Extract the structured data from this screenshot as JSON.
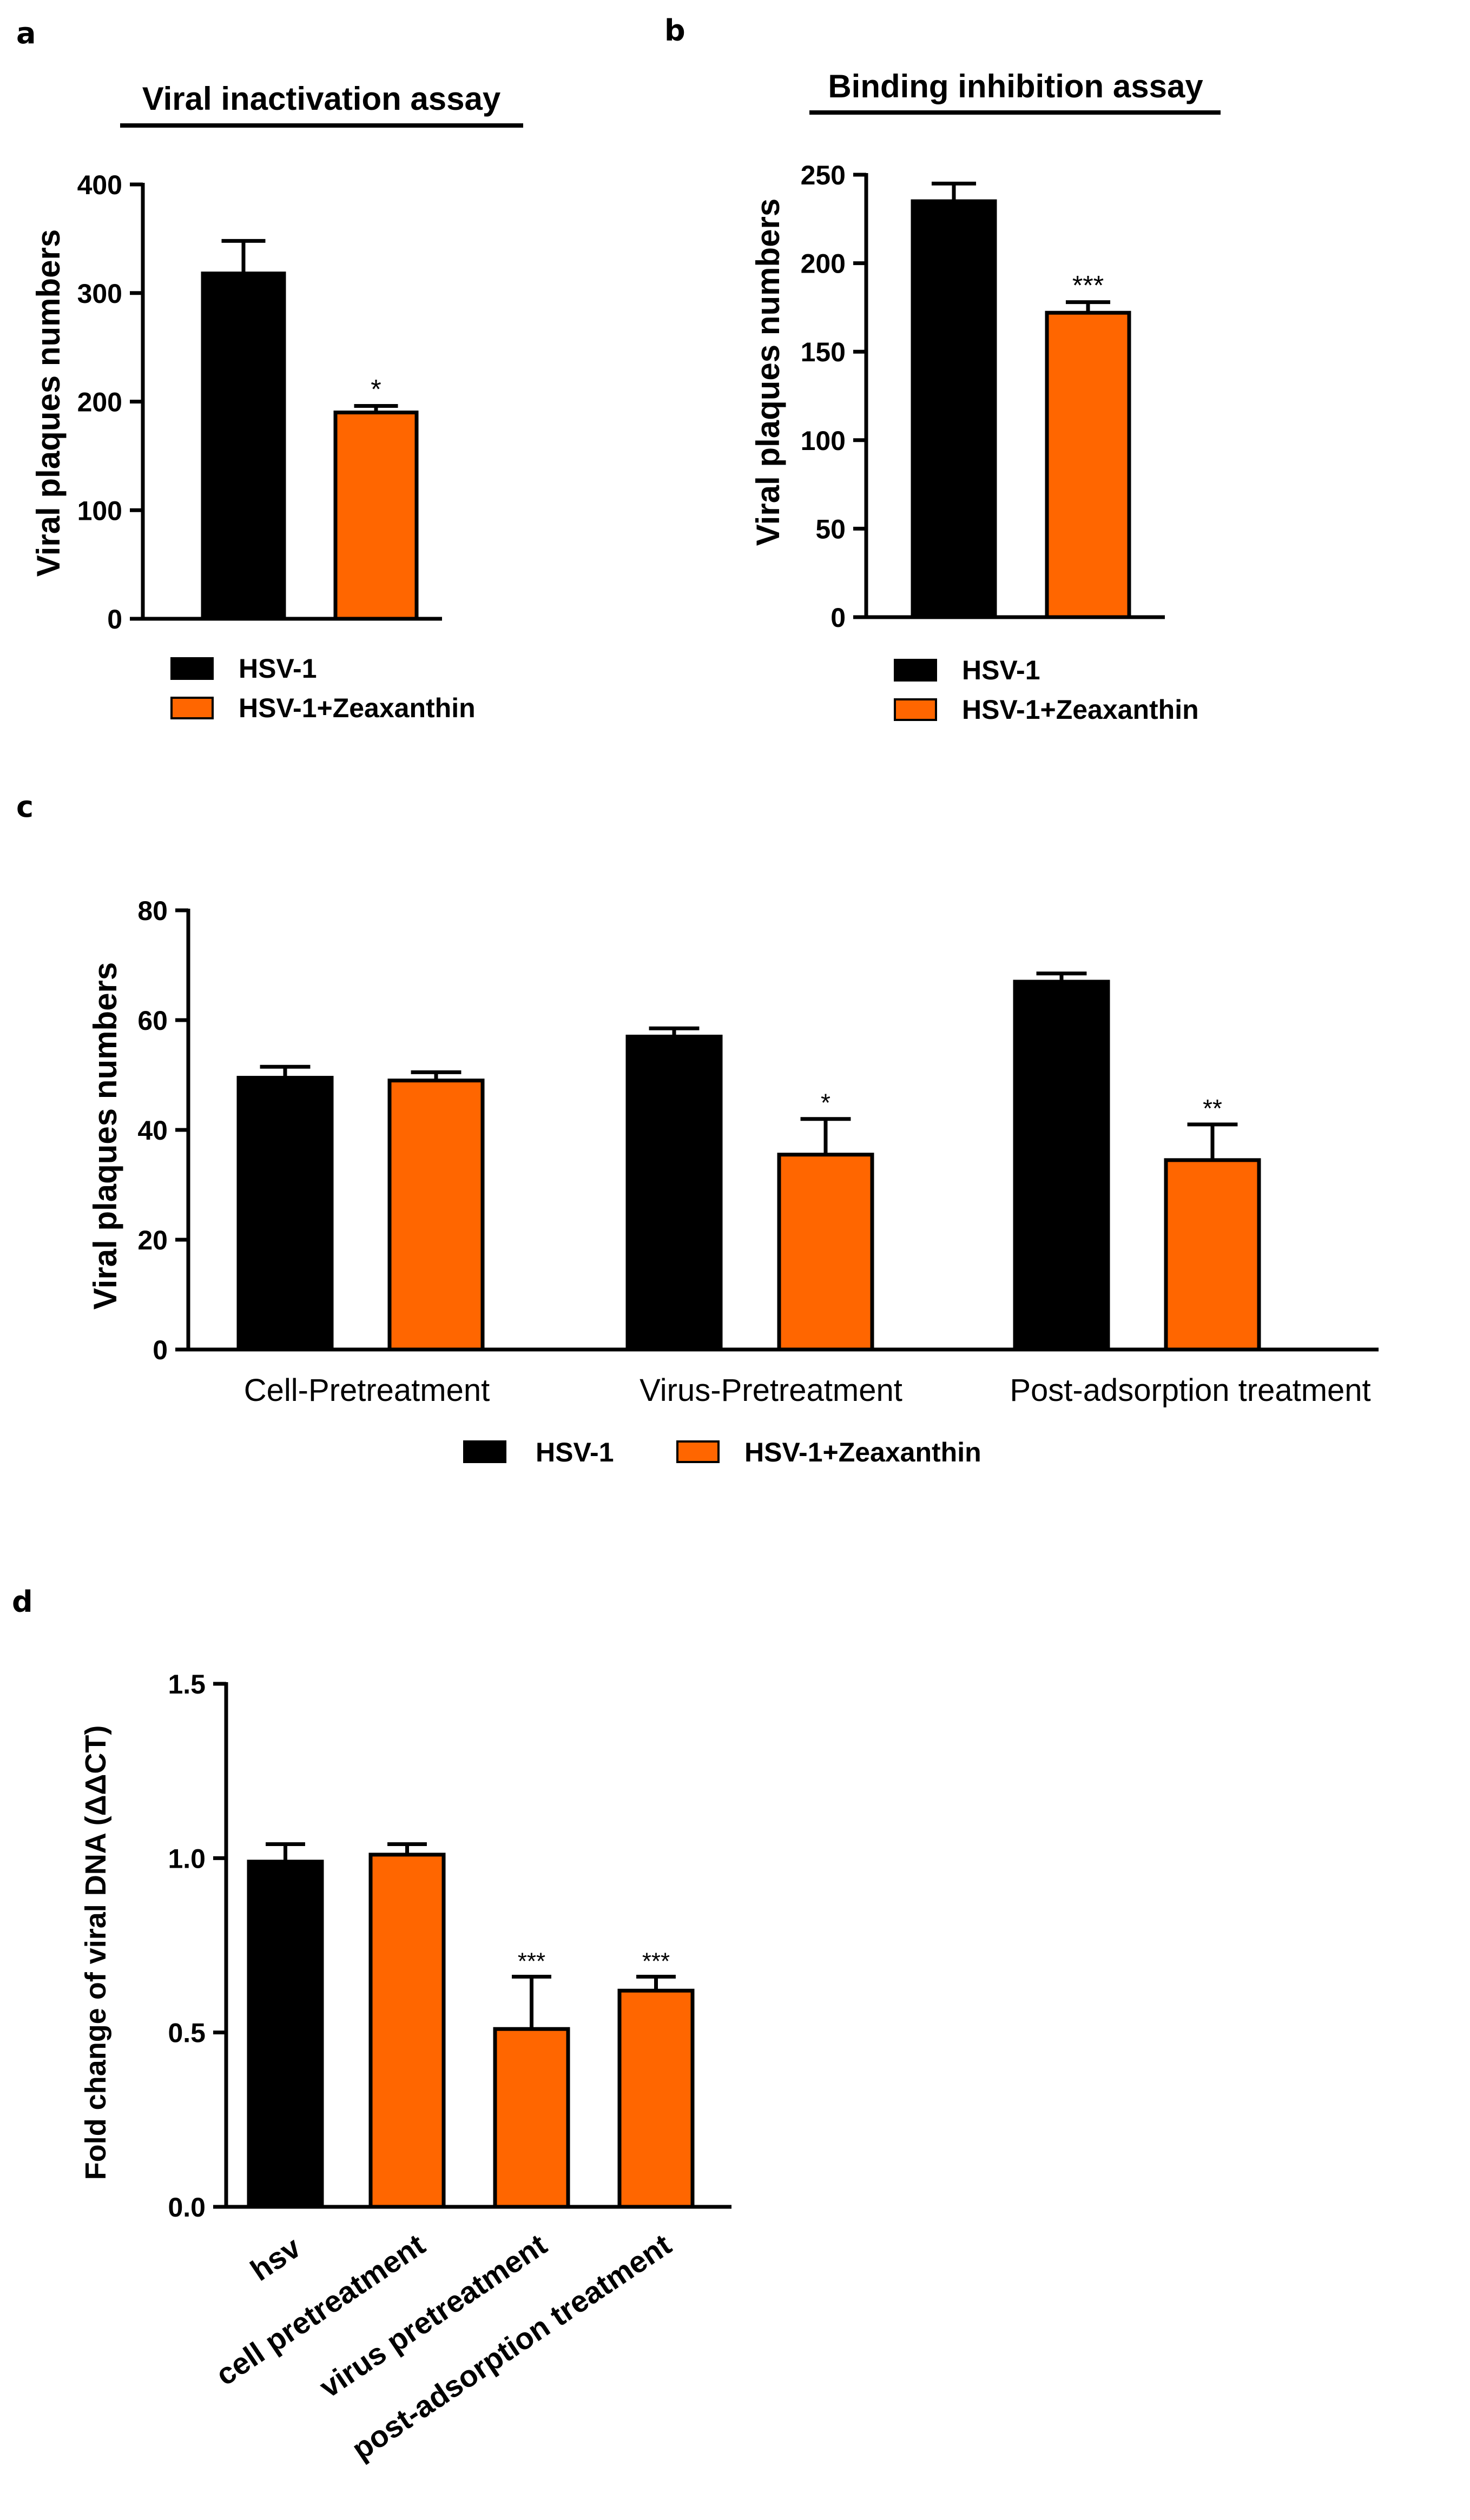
{
  "colors": {
    "hsv": "#000000",
    "zeaxanthin": "#ff6600",
    "axis": "#000000"
  },
  "chart_data": [
    {
      "panel": "a",
      "type": "bar",
      "title": "Viral inactivation assay",
      "ylabel": "Viral plaques numbers",
      "xlabel": "",
      "ylim": [
        0,
        400
      ],
      "yticks": [
        0,
        100,
        200,
        300,
        400
      ],
      "categories": [
        "HSV-1",
        "HSV-1+Zeaxanthin"
      ],
      "values": [
        318,
        190
      ],
      "errors": [
        30,
        6
      ],
      "bar_colors": [
        "hsv",
        "zeaxanthin"
      ],
      "significance": [
        "",
        "*"
      ],
      "legend": [
        {
          "label": "HSV-1",
          "color": "hsv"
        },
        {
          "label": "HSV-1+Zeaxanthin",
          "color": "zeaxanthin"
        }
      ]
    },
    {
      "panel": "b",
      "type": "bar",
      "title": "Binding inhibition assay",
      "ylabel": "Viral plaques numbers",
      "xlabel": "",
      "ylim": [
        0,
        250
      ],
      "yticks": [
        0,
        50,
        100,
        150,
        200,
        250
      ],
      "categories": [
        "HSV-1",
        "HSV-1+Zeaxanthin"
      ],
      "values": [
        235,
        172
      ],
      "errors": [
        10,
        6
      ],
      "bar_colors": [
        "hsv",
        "zeaxanthin"
      ],
      "significance": [
        "",
        "***"
      ],
      "legend": [
        {
          "label": "HSV-1",
          "color": "hsv"
        },
        {
          "label": "HSV-1+Zeaxanthin",
          "color": "zeaxanthin"
        }
      ]
    },
    {
      "panel": "c",
      "type": "bar",
      "title": "",
      "ylabel": "Viral plaques numbers",
      "xlabel": "",
      "ylim": [
        0,
        80
      ],
      "yticks": [
        0,
        20,
        40,
        60,
        80
      ],
      "categories": [
        "Cell-Pretreatment",
        "Virus-Pretreatment",
        "Post-adsorption treatment"
      ],
      "series": [
        {
          "name": "HSV-1",
          "color": "hsv",
          "values": [
            49.5,
            57,
            67
          ],
          "errors": [
            2,
            1.5,
            1.5
          ],
          "significance": [
            "",
            "",
            ""
          ]
        },
        {
          "name": "HSV-1+Zeaxanthin",
          "color": "zeaxanthin",
          "values": [
            49,
            35.5,
            34.5
          ],
          "errors": [
            1.5,
            6.5,
            6.5
          ],
          "significance": [
            "",
            "*",
            "**"
          ]
        }
      ],
      "legend": [
        {
          "label": "HSV-1",
          "color": "hsv"
        },
        {
          "label": "HSV-1+Zeaxanthin",
          "color": "zeaxanthin"
        }
      ]
    },
    {
      "panel": "d",
      "type": "bar",
      "title": "",
      "ylabel": "Fold change of viral DNA (ΔΔCT)",
      "xlabel": "",
      "ylim": [
        0,
        1.5
      ],
      "yticks": [
        "0.0",
        "0.5",
        "1.0",
        "1.5"
      ],
      "categories": [
        "hsv",
        "cell pretreatment",
        "virus pretreatment",
        "post-adsorption treatment"
      ],
      "values": [
        0.99,
        1.01,
        0.51,
        0.62
      ],
      "errors": [
        0.05,
        0.03,
        0.15,
        0.04
      ],
      "bar_colors": [
        "hsv",
        "zeaxanthin",
        "zeaxanthin",
        "zeaxanthin"
      ],
      "significance": [
        "",
        "",
        "***",
        "***"
      ]
    }
  ]
}
